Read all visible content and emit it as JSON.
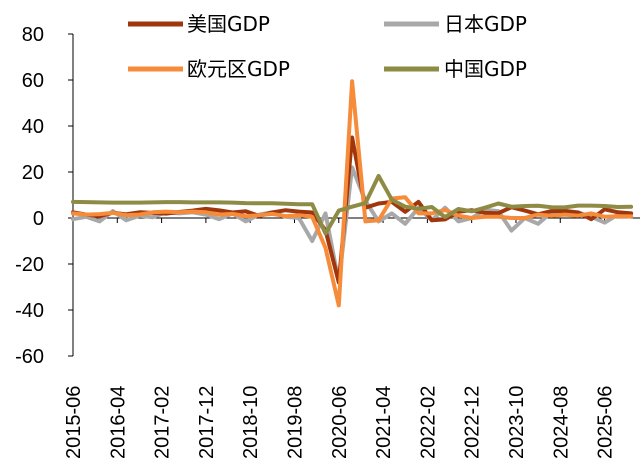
{
  "chart_data": {
    "type": "line",
    "title": "",
    "xlabel": "",
    "ylabel": "",
    "ylim": [
      -60,
      80
    ],
    "yticks": [
      80,
      60,
      40,
      20,
      0,
      -20,
      -40,
      -60
    ],
    "xtick_labels": [
      "2015-06",
      "2016-04",
      "2017-02",
      "2017-12",
      "2018-10",
      "2019-08",
      "2020-06",
      "2021-04",
      "2022-02",
      "2022-12",
      "2023-10",
      "2024-08",
      "2025-06"
    ],
    "grid": false,
    "legend": "top",
    "x": [
      "2015-06",
      "2015-09",
      "2015-12",
      "2016-03",
      "2016-06",
      "2016-09",
      "2016-12",
      "2017-03",
      "2017-06",
      "2017-09",
      "2017-12",
      "2018-03",
      "2018-06",
      "2018-09",
      "2018-12",
      "2019-03",
      "2019-06",
      "2019-09",
      "2019-12",
      "2020-03",
      "2020-06",
      "2020-09",
      "2020-12",
      "2021-03",
      "2021-06",
      "2021-09",
      "2021-12",
      "2022-03",
      "2022-06",
      "2022-09",
      "2022-12",
      "2023-03",
      "2023-06",
      "2023-09",
      "2023-12",
      "2024-03",
      "2024-06",
      "2024-09",
      "2024-12",
      "2025-03",
      "2025-06",
      "2025-09",
      "2025-12"
    ],
    "series": [
      {
        "name": "美国GDP",
        "color": "#a0360c",
        "values": [
          2.5,
          1.5,
          0.8,
          2.3,
          1.6,
          2.5,
          2.2,
          1.9,
          2.6,
          3.2,
          4.0,
          3.3,
          2.4,
          2.9,
          0.9,
          2.4,
          3.4,
          2.8,
          2.4,
          -5.3,
          -28.0,
          35.0,
          4.5,
          6.3,
          7.0,
          2.7,
          7.0,
          -1.0,
          -0.6,
          2.7,
          3.4,
          2.2,
          2.1,
          4.7,
          3.2,
          1.6,
          3.0,
          3.1,
          2.4,
          -0.5,
          3.8,
          2.5,
          2.0
        ]
      },
      {
        "name": "日本GDP",
        "color": "#a8a8a8",
        "values": [
          -0.5,
          0.5,
          -1.5,
          3.0,
          -1.0,
          1.0,
          0.3,
          2.5,
          2.0,
          2.5,
          1.5,
          -0.5,
          2.0,
          -1.5,
          1.5,
          2.5,
          0.5,
          0.0,
          -10.0,
          2.0,
          -28.0,
          22.0,
          7.5,
          -1.5,
          2.0,
          -2.5,
          4.5,
          -1.0,
          4.5,
          -1.5,
          0.0,
          3.5,
          3.0,
          -5.5,
          0.0,
          -2.5,
          2.5,
          1.5,
          2.5,
          0.5,
          -2.0,
          1.5,
          0.5
        ]
      },
      {
        "name": "欧元区GDP",
        "color": "#f68b3a",
        "values": [
          2.0,
          1.5,
          1.7,
          2.2,
          1.2,
          1.5,
          2.5,
          2.8,
          2.5,
          2.8,
          2.5,
          1.5,
          1.8,
          0.8,
          1.2,
          1.8,
          0.8,
          1.2,
          0.5,
          -13.0,
          -38.0,
          59.5,
          -1.5,
          -1.0,
          8.5,
          9.0,
          2.0,
          2.0,
          3.5,
          1.0,
          0.0,
          0.5,
          0.5,
          0.0,
          0.0,
          1.5,
          1.0,
          1.5,
          1.0,
          2.0,
          0.5,
          0.8,
          0.7
        ]
      },
      {
        "name": "中国GDP",
        "color": "#8d8b44",
        "values": [
          7.0,
          6.9,
          6.8,
          6.7,
          6.7,
          6.7,
          6.8,
          6.9,
          6.9,
          6.8,
          6.8,
          6.8,
          6.7,
          6.5,
          6.4,
          6.4,
          6.2,
          6.0,
          6.0,
          -6.8,
          3.2,
          4.9,
          6.5,
          18.3,
          7.9,
          4.9,
          4.0,
          4.8,
          0.4,
          3.9,
          2.9,
          4.5,
          6.3,
          4.9,
          5.2,
          5.3,
          4.7,
          4.6,
          5.4,
          5.4,
          5.2,
          4.8,
          4.9
        ]
      }
    ]
  }
}
